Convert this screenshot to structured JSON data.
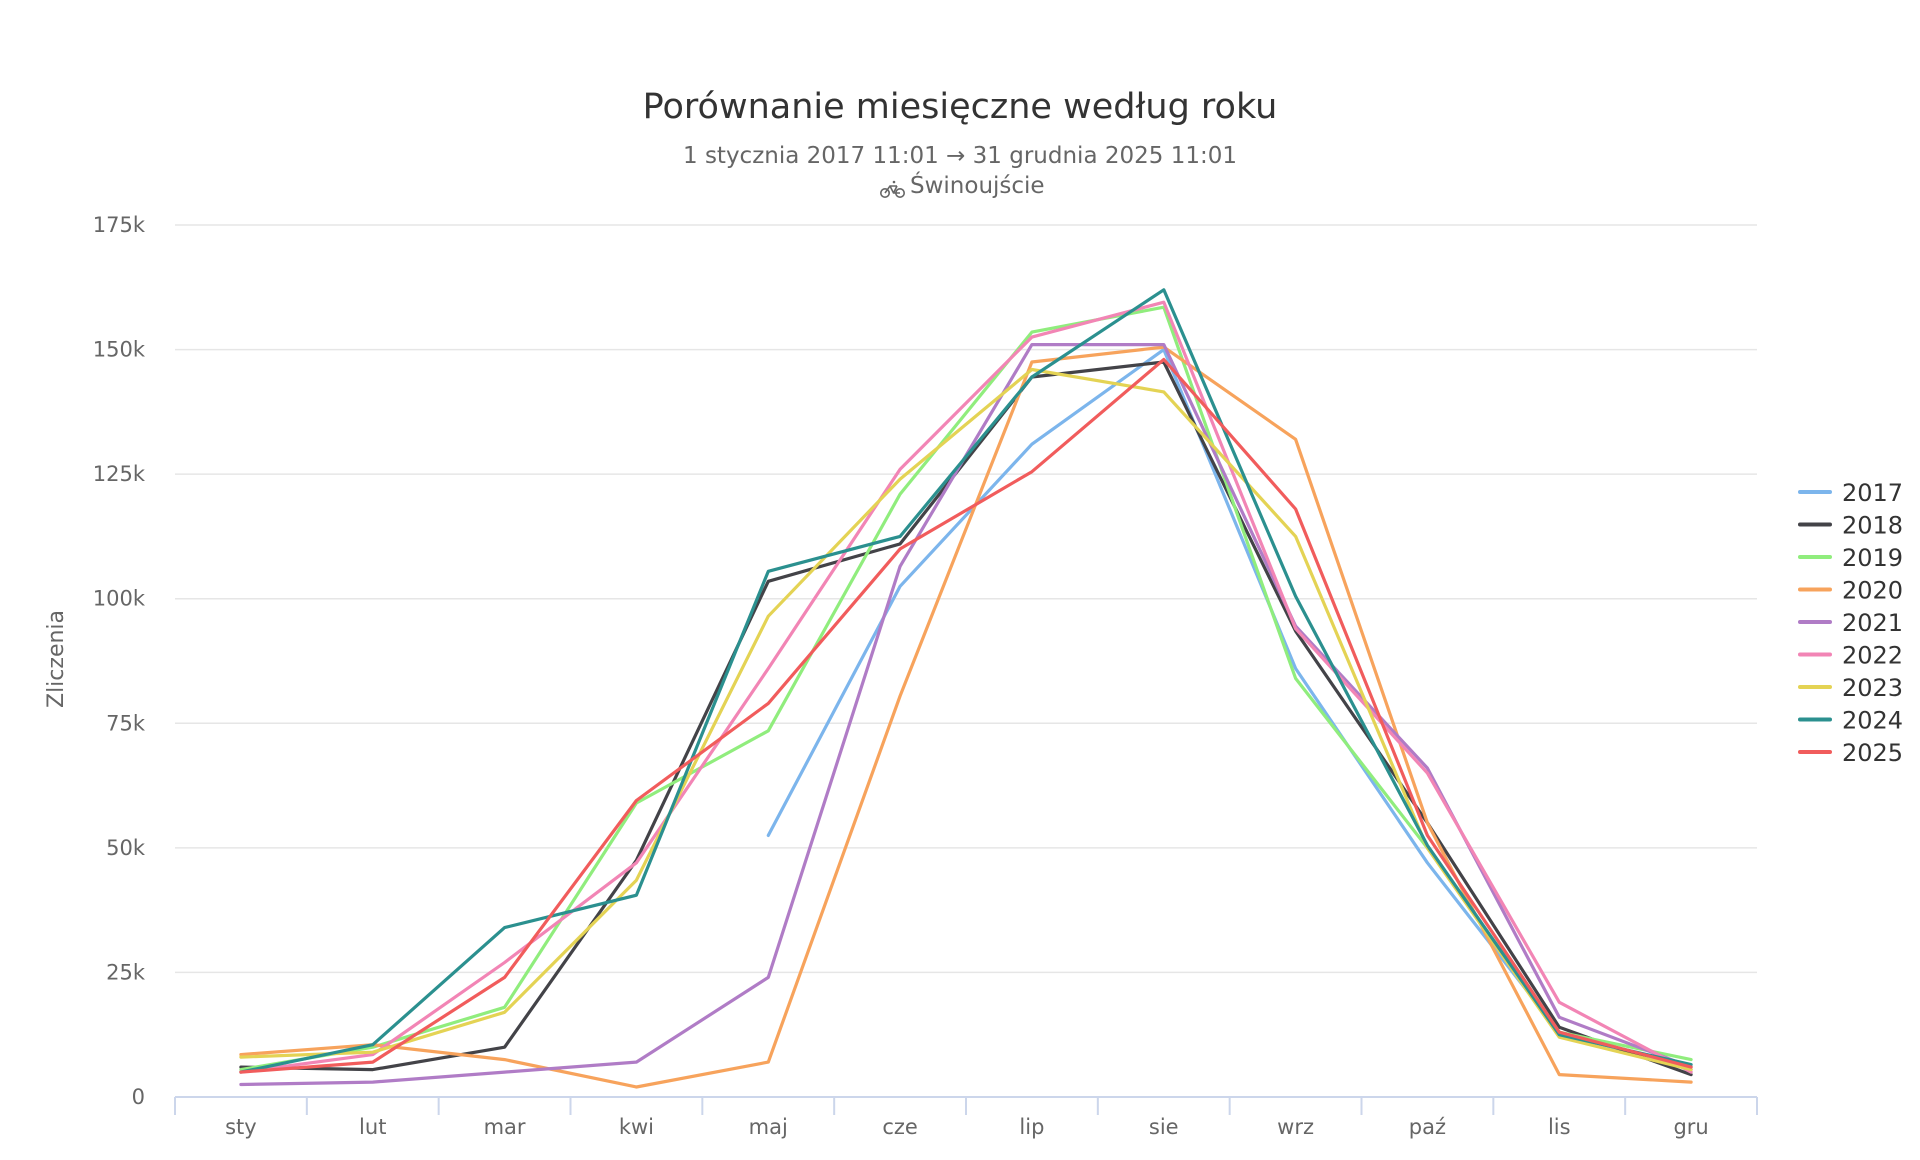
{
  "chart_data": {
    "type": "line",
    "title": "Porównanie miesięczne według roku",
    "subtitle": "1 stycznia 2017 11:01 → 31 grudnia 2025 11:01",
    "location": "Świnoujście",
    "location_icon": "bicycle-icon",
    "ylabel": "Zliczenia",
    "xlabel": "",
    "ylim": [
      0,
      175000
    ],
    "yticks": [
      {
        "value": 0,
        "label": "0"
      },
      {
        "value": 25000,
        "label": "25k"
      },
      {
        "value": 50000,
        "label": "50k"
      },
      {
        "value": 75000,
        "label": "75k"
      },
      {
        "value": 100000,
        "label": "100k"
      },
      {
        "value": 125000,
        "label": "125k"
      },
      {
        "value": 150000,
        "label": "150k"
      },
      {
        "value": 175000,
        "label": "175k"
      }
    ],
    "categories": [
      "sty",
      "lut",
      "mar",
      "kwi",
      "maj",
      "cze",
      "lip",
      "sie",
      "wrz",
      "paź",
      "lis",
      "gru"
    ],
    "grid": true,
    "legend_position": "right",
    "series": [
      {
        "name": "2017",
        "color": "#7cb5ec",
        "values": [
          null,
          null,
          null,
          null,
          52500,
          102500,
          131000,
          150000,
          86000,
          47000,
          13000,
          5500
        ]
      },
      {
        "name": "2018",
        "color": "#434348",
        "values": [
          6000,
          5500,
          10000,
          47500,
          103500,
          111000,
          144500,
          147500,
          93500,
          55000,
          14000,
          4500
        ]
      },
      {
        "name": "2019",
        "color": "#90ed7d",
        "values": [
          5500,
          10000,
          18000,
          59000,
          73500,
          121000,
          153500,
          158500,
          84000,
          50000,
          13000,
          7500
        ]
      },
      {
        "name": "2020",
        "color": "#f7a35c",
        "values": [
          8500,
          10500,
          7500,
          2000,
          7000,
          80500,
          147500,
          150500,
          132000,
          55000,
          4500,
          3000
        ]
      },
      {
        "name": "2021",
        "color": "#b07cc6",
        "values": [
          2500,
          3000,
          5000,
          7000,
          24000,
          106500,
          151000,
          151000,
          94500,
          66000,
          16000,
          6000
        ]
      },
      {
        "name": "2022",
        "color": "#f285b5",
        "values": [
          5000,
          8500,
          27000,
          47000,
          86000,
          126000,
          152500,
          159500,
          94000,
          65000,
          19000,
          5000
        ]
      },
      {
        "name": "2023",
        "color": "#e4d354",
        "values": [
          8000,
          9000,
          17000,
          43500,
          96500,
          124000,
          146000,
          141500,
          112500,
          50000,
          12000,
          5500
        ]
      },
      {
        "name": "2024",
        "color": "#2b908f",
        "values": [
          5000,
          10500,
          34000,
          40500,
          105500,
          112500,
          144500,
          162000,
          100500,
          50500,
          12500,
          6500
        ]
      },
      {
        "name": "2025",
        "color": "#f15c5c",
        "values": [
          5000,
          7000,
          24000,
          59500,
          79000,
          110000,
          125500,
          148000,
          118000,
          52500,
          13000,
          6000
        ]
      }
    ]
  }
}
